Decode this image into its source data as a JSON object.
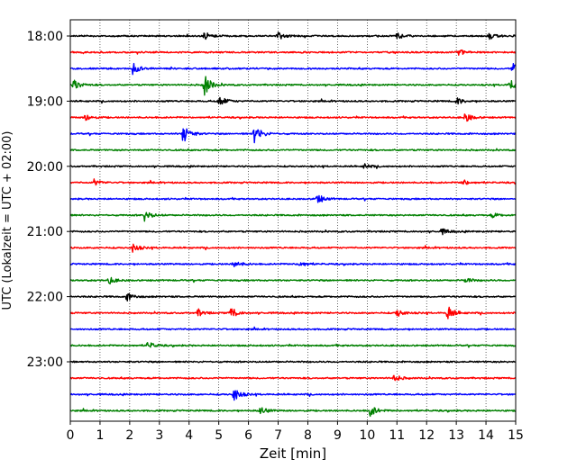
{
  "chart_data": {
    "type": "line",
    "title": "",
    "xlabel": "Zeit  [min]",
    "ylabel": "UTC (Lokalzeit = UTC + 02:00)",
    "xlim": [
      0,
      15
    ],
    "x_ticks": [
      "0",
      "1",
      "2",
      "3",
      "4",
      "5",
      "6",
      "7",
      "8",
      "9",
      "10",
      "11",
      "12",
      "13",
      "14",
      "15"
    ],
    "y_tick_labels": [
      "18:00",
      "19:00",
      "20:00",
      "21:00",
      "22:00",
      "23:00"
    ],
    "y_tick_rows": [
      0,
      4,
      8,
      12,
      16,
      20
    ],
    "grid_x": true,
    "row_interval_minutes": 15,
    "colors": [
      "#000000",
      "#ff0000",
      "#0000ff",
      "#008000"
    ],
    "rows": [
      {
        "start": "18:00",
        "color": "#000000",
        "events": [
          {
            "t": 4.5,
            "amp": 0.35
          },
          {
            "t": 7.0,
            "amp": 0.3
          },
          {
            "t": 11.0,
            "amp": 0.25
          },
          {
            "t": 14.1,
            "amp": 0.3
          }
        ]
      },
      {
        "start": "18:15",
        "color": "#ff0000",
        "events": [
          {
            "t": 13.0,
            "amp": 0.35
          }
        ]
      },
      {
        "start": "18:30",
        "color": "#0000ff",
        "events": [
          {
            "t": 2.1,
            "amp": 0.5
          },
          {
            "t": 14.9,
            "amp": 0.6
          }
        ]
      },
      {
        "start": "18:45",
        "color": "#008000",
        "events": [
          {
            "t": 0.1,
            "amp": 0.5
          },
          {
            "t": 4.5,
            "amp": 1.0
          },
          {
            "t": 14.8,
            "amp": 0.6
          }
        ]
      },
      {
        "start": "19:00",
        "color": "#000000",
        "events": [
          {
            "t": 5.0,
            "amp": 0.5
          },
          {
            "t": 13.0,
            "amp": 0.3
          }
        ]
      },
      {
        "start": "19:15",
        "color": "#ff0000",
        "events": [
          {
            "t": 0.5,
            "amp": 0.3
          },
          {
            "t": 13.3,
            "amp": 0.4
          }
        ]
      },
      {
        "start": "19:30",
        "color": "#0000ff",
        "events": [
          {
            "t": 3.8,
            "amp": 0.85
          },
          {
            "t": 6.2,
            "amp": 0.85
          }
        ]
      },
      {
        "start": "19:45",
        "color": "#008000",
        "events": []
      },
      {
        "start": "20:00",
        "color": "#000000",
        "events": [
          {
            "t": 9.9,
            "amp": 0.2
          }
        ]
      },
      {
        "start": "20:15",
        "color": "#ff0000",
        "events": [
          {
            "t": 0.8,
            "amp": 0.25
          },
          {
            "t": 13.2,
            "amp": 0.25
          }
        ]
      },
      {
        "start": "20:30",
        "color": "#0000ff",
        "events": [
          {
            "t": 8.3,
            "amp": 0.45
          }
        ]
      },
      {
        "start": "20:45",
        "color": "#008000",
        "events": [
          {
            "t": 2.5,
            "amp": 0.45
          },
          {
            "t": 14.2,
            "amp": 0.2
          }
        ]
      },
      {
        "start": "21:00",
        "color": "#000000",
        "events": [
          {
            "t": 12.5,
            "amp": 0.25
          }
        ]
      },
      {
        "start": "21:15",
        "color": "#ff0000",
        "events": [
          {
            "t": 2.1,
            "amp": 0.35
          }
        ]
      },
      {
        "start": "21:30",
        "color": "#0000ff",
        "events": [
          {
            "t": 5.5,
            "amp": 0.35
          },
          {
            "t": 7.7,
            "amp": 0.3
          }
        ]
      },
      {
        "start": "21:45",
        "color": "#008000",
        "events": [
          {
            "t": 1.3,
            "amp": 0.3
          },
          {
            "t": 13.3,
            "amp": 0.25
          }
        ]
      },
      {
        "start": "22:00",
        "color": "#000000",
        "events": [
          {
            "t": 1.9,
            "amp": 0.35
          }
        ]
      },
      {
        "start": "22:15",
        "color": "#ff0000",
        "events": [
          {
            "t": 4.3,
            "amp": 0.3
          },
          {
            "t": 5.4,
            "amp": 0.5
          },
          {
            "t": 11.0,
            "amp": 0.35
          },
          {
            "t": 12.7,
            "amp": 0.65
          }
        ]
      },
      {
        "start": "22:30",
        "color": "#0000ff",
        "events": []
      },
      {
        "start": "22:45",
        "color": "#008000",
        "events": [
          {
            "t": 2.6,
            "amp": 0.3
          }
        ]
      },
      {
        "start": "23:00",
        "color": "#000000",
        "events": []
      },
      {
        "start": "23:15",
        "color": "#ff0000",
        "events": [
          {
            "t": 10.9,
            "amp": 0.3
          }
        ]
      },
      {
        "start": "23:30",
        "color": "#0000ff",
        "events": [
          {
            "t": 5.5,
            "amp": 0.6
          }
        ]
      },
      {
        "start": "23:45",
        "color": "#008000",
        "events": [
          {
            "t": 6.4,
            "amp": 0.35
          },
          {
            "t": 10.1,
            "amp": 0.5
          }
        ]
      }
    ]
  }
}
